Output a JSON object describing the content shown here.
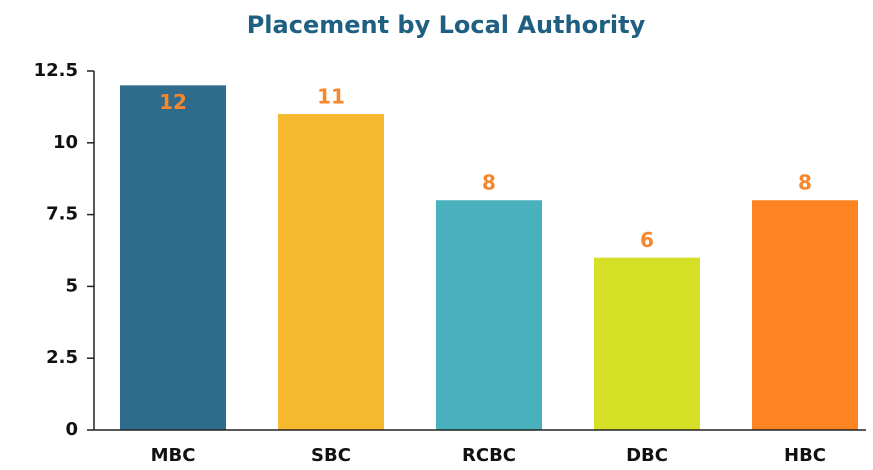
{
  "chart_data": {
    "type": "bar",
    "title": "Placement by Local Authority",
    "categories": [
      "MBC",
      "SBC",
      "RCBC",
      "DBC",
      "HBC"
    ],
    "values": [
      12,
      11,
      8,
      6,
      8
    ],
    "colors": [
      "#2f6b8a",
      "#f5b82e",
      "#49b0bd",
      "#d4df26",
      "#fd8420"
    ],
    "label_color": "#f7872a",
    "ylim": [
      0,
      12.5
    ],
    "yticks": [
      0,
      2.5,
      5,
      7.5,
      10,
      12.5
    ],
    "grid": false
  }
}
